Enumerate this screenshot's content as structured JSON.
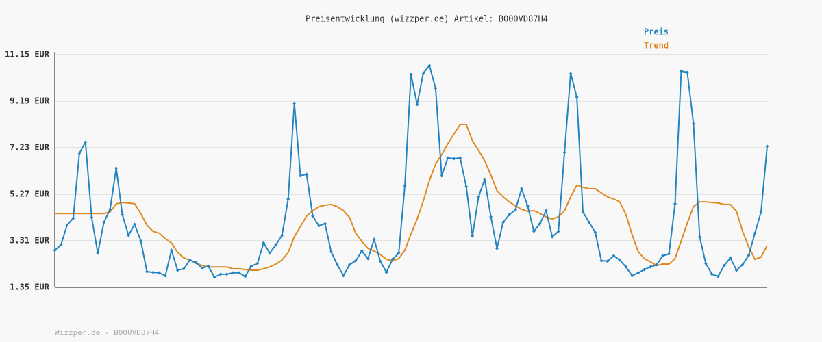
{
  "chart_data": {
    "type": "line",
    "title": "Preisentwicklung (wizzper.de) Artikel: B000VD87H4",
    "footer": "Wizzper.de - B000VD87H4",
    "ylim": [
      1.35,
      11.15
    ],
    "yticks": [
      {
        "value": 1.35,
        "label": "1.35 EUR"
      },
      {
        "value": 3.31,
        "label": "3.31 EUR"
      },
      {
        "value": 5.27,
        "label": "5.27 EUR"
      },
      {
        "value": 7.23,
        "label": "7.23 EUR"
      },
      {
        "value": 9.19,
        "label": "9.19 EUR"
      },
      {
        "value": 11.15,
        "label": "11.15 EUR"
      }
    ],
    "grid": true,
    "legend": "top-right",
    "series": [
      {
        "name": "Preis",
        "color": "#2384c0",
        "markers": true,
        "values": [
          2.91,
          3.14,
          3.97,
          4.26,
          7.0,
          7.46,
          4.29,
          2.79,
          4.09,
          4.64,
          6.37,
          4.41,
          3.54,
          4.0,
          3.31,
          2.01,
          1.98,
          1.96,
          1.84,
          2.91,
          2.07,
          2.13,
          2.5,
          2.39,
          2.16,
          2.24,
          1.78,
          1.9,
          1.9,
          1.96,
          1.96,
          1.81,
          2.24,
          2.36,
          3.22,
          2.79,
          3.14,
          3.54,
          5.07,
          9.1,
          6.05,
          6.11,
          4.35,
          3.94,
          4.03,
          2.85,
          2.3,
          1.84,
          2.3,
          2.47,
          2.88,
          2.56,
          3.37,
          2.45,
          1.98,
          2.53,
          2.79,
          5.62,
          10.32,
          9.05,
          10.37,
          10.69,
          9.74,
          6.05,
          6.8,
          6.77,
          6.8,
          5.59,
          3.51,
          5.16,
          5.9,
          4.32,
          2.99,
          4.09,
          4.41,
          4.61,
          5.5,
          4.78,
          3.71,
          4.03,
          4.58,
          3.48,
          3.71,
          7.03,
          10.37,
          9.36,
          4.52,
          4.09,
          3.66,
          2.47,
          2.45,
          2.68,
          2.5,
          2.21,
          1.84,
          1.96,
          2.1,
          2.21,
          2.3,
          2.68,
          2.76,
          4.87,
          10.46,
          10.4,
          8.24,
          3.48,
          2.36,
          1.9,
          1.81,
          2.27,
          2.59,
          2.07,
          2.3,
          2.7,
          3.63,
          4.52,
          7.29
        ]
      },
      {
        "name": "Trend",
        "color": "#e0891e",
        "markers": false,
        "values": [
          4.46,
          4.46,
          4.46,
          4.46,
          4.46,
          4.46,
          4.46,
          4.46,
          4.46,
          4.52,
          4.87,
          4.92,
          4.9,
          4.87,
          4.46,
          3.97,
          3.71,
          3.63,
          3.4,
          3.22,
          2.82,
          2.59,
          2.5,
          2.36,
          2.27,
          2.21,
          2.21,
          2.21,
          2.21,
          2.13,
          2.13,
          2.1,
          2.07,
          2.07,
          2.13,
          2.21,
          2.33,
          2.5,
          2.82,
          3.48,
          3.91,
          4.35,
          4.58,
          4.75,
          4.81,
          4.84,
          4.75,
          4.58,
          4.29,
          3.63,
          3.28,
          2.99,
          2.88,
          2.73,
          2.53,
          2.47,
          2.56,
          2.91,
          3.6,
          4.23,
          4.98,
          5.85,
          6.54,
          6.94,
          7.4,
          7.81,
          8.21,
          8.21,
          7.52,
          7.12,
          6.68,
          6.08,
          5.42,
          5.16,
          4.95,
          4.78,
          4.64,
          4.55,
          4.58,
          4.46,
          4.32,
          4.23,
          4.32,
          4.58,
          5.16,
          5.65,
          5.56,
          5.5,
          5.5,
          5.33,
          5.16,
          5.07,
          4.95,
          4.41,
          3.57,
          2.85,
          2.56,
          2.42,
          2.27,
          2.33,
          2.33,
          2.56,
          3.31,
          4.06,
          4.75,
          4.95,
          4.95,
          4.92,
          4.9,
          4.84,
          4.84,
          4.55,
          3.71,
          3.05,
          2.53,
          2.62,
          3.11
        ]
      }
    ]
  }
}
